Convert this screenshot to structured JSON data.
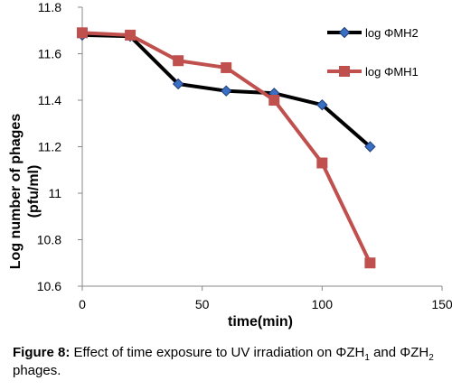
{
  "chart_data": {
    "type": "line",
    "x": [
      0,
      20,
      40,
      60,
      80,
      100,
      120
    ],
    "series": [
      {
        "name": "log ΦMH2",
        "values": [
          11.68,
          11.675,
          11.47,
          11.44,
          11.43,
          11.38,
          11.2
        ],
        "color": "#000000",
        "marker": "diamond",
        "marker_color": "#3a6fc4"
      },
      {
        "name": "log ΦMH1",
        "values": [
          11.69,
          11.68,
          11.57,
          11.54,
          11.4,
          11.13,
          10.7
        ],
        "color": "#c0504d",
        "marker": "square",
        "marker_color": "#c0504d"
      }
    ],
    "xlabel": "time(min)",
    "ylabel_line1": "Log  number of phages",
    "ylabel_line2": "(pfu/ml)",
    "xlim": [
      0,
      150
    ],
    "ylim": [
      10.6,
      11.8
    ],
    "x_ticks": [
      "0",
      "50",
      "100",
      "150"
    ],
    "y_ticks": [
      "10.6",
      "10.8",
      "11",
      "11.2",
      "11.4",
      "11.6",
      "11.8"
    ],
    "grid": false,
    "legend_position": "right"
  },
  "caption": {
    "label": "Figure 8:",
    "text_part1": " Effect of time exposure to UV irradiation on ΦZH",
    "sub1": "1",
    "text_part2": " and ΦZH",
    "sub2": "2",
    "text_part3": " phages."
  }
}
